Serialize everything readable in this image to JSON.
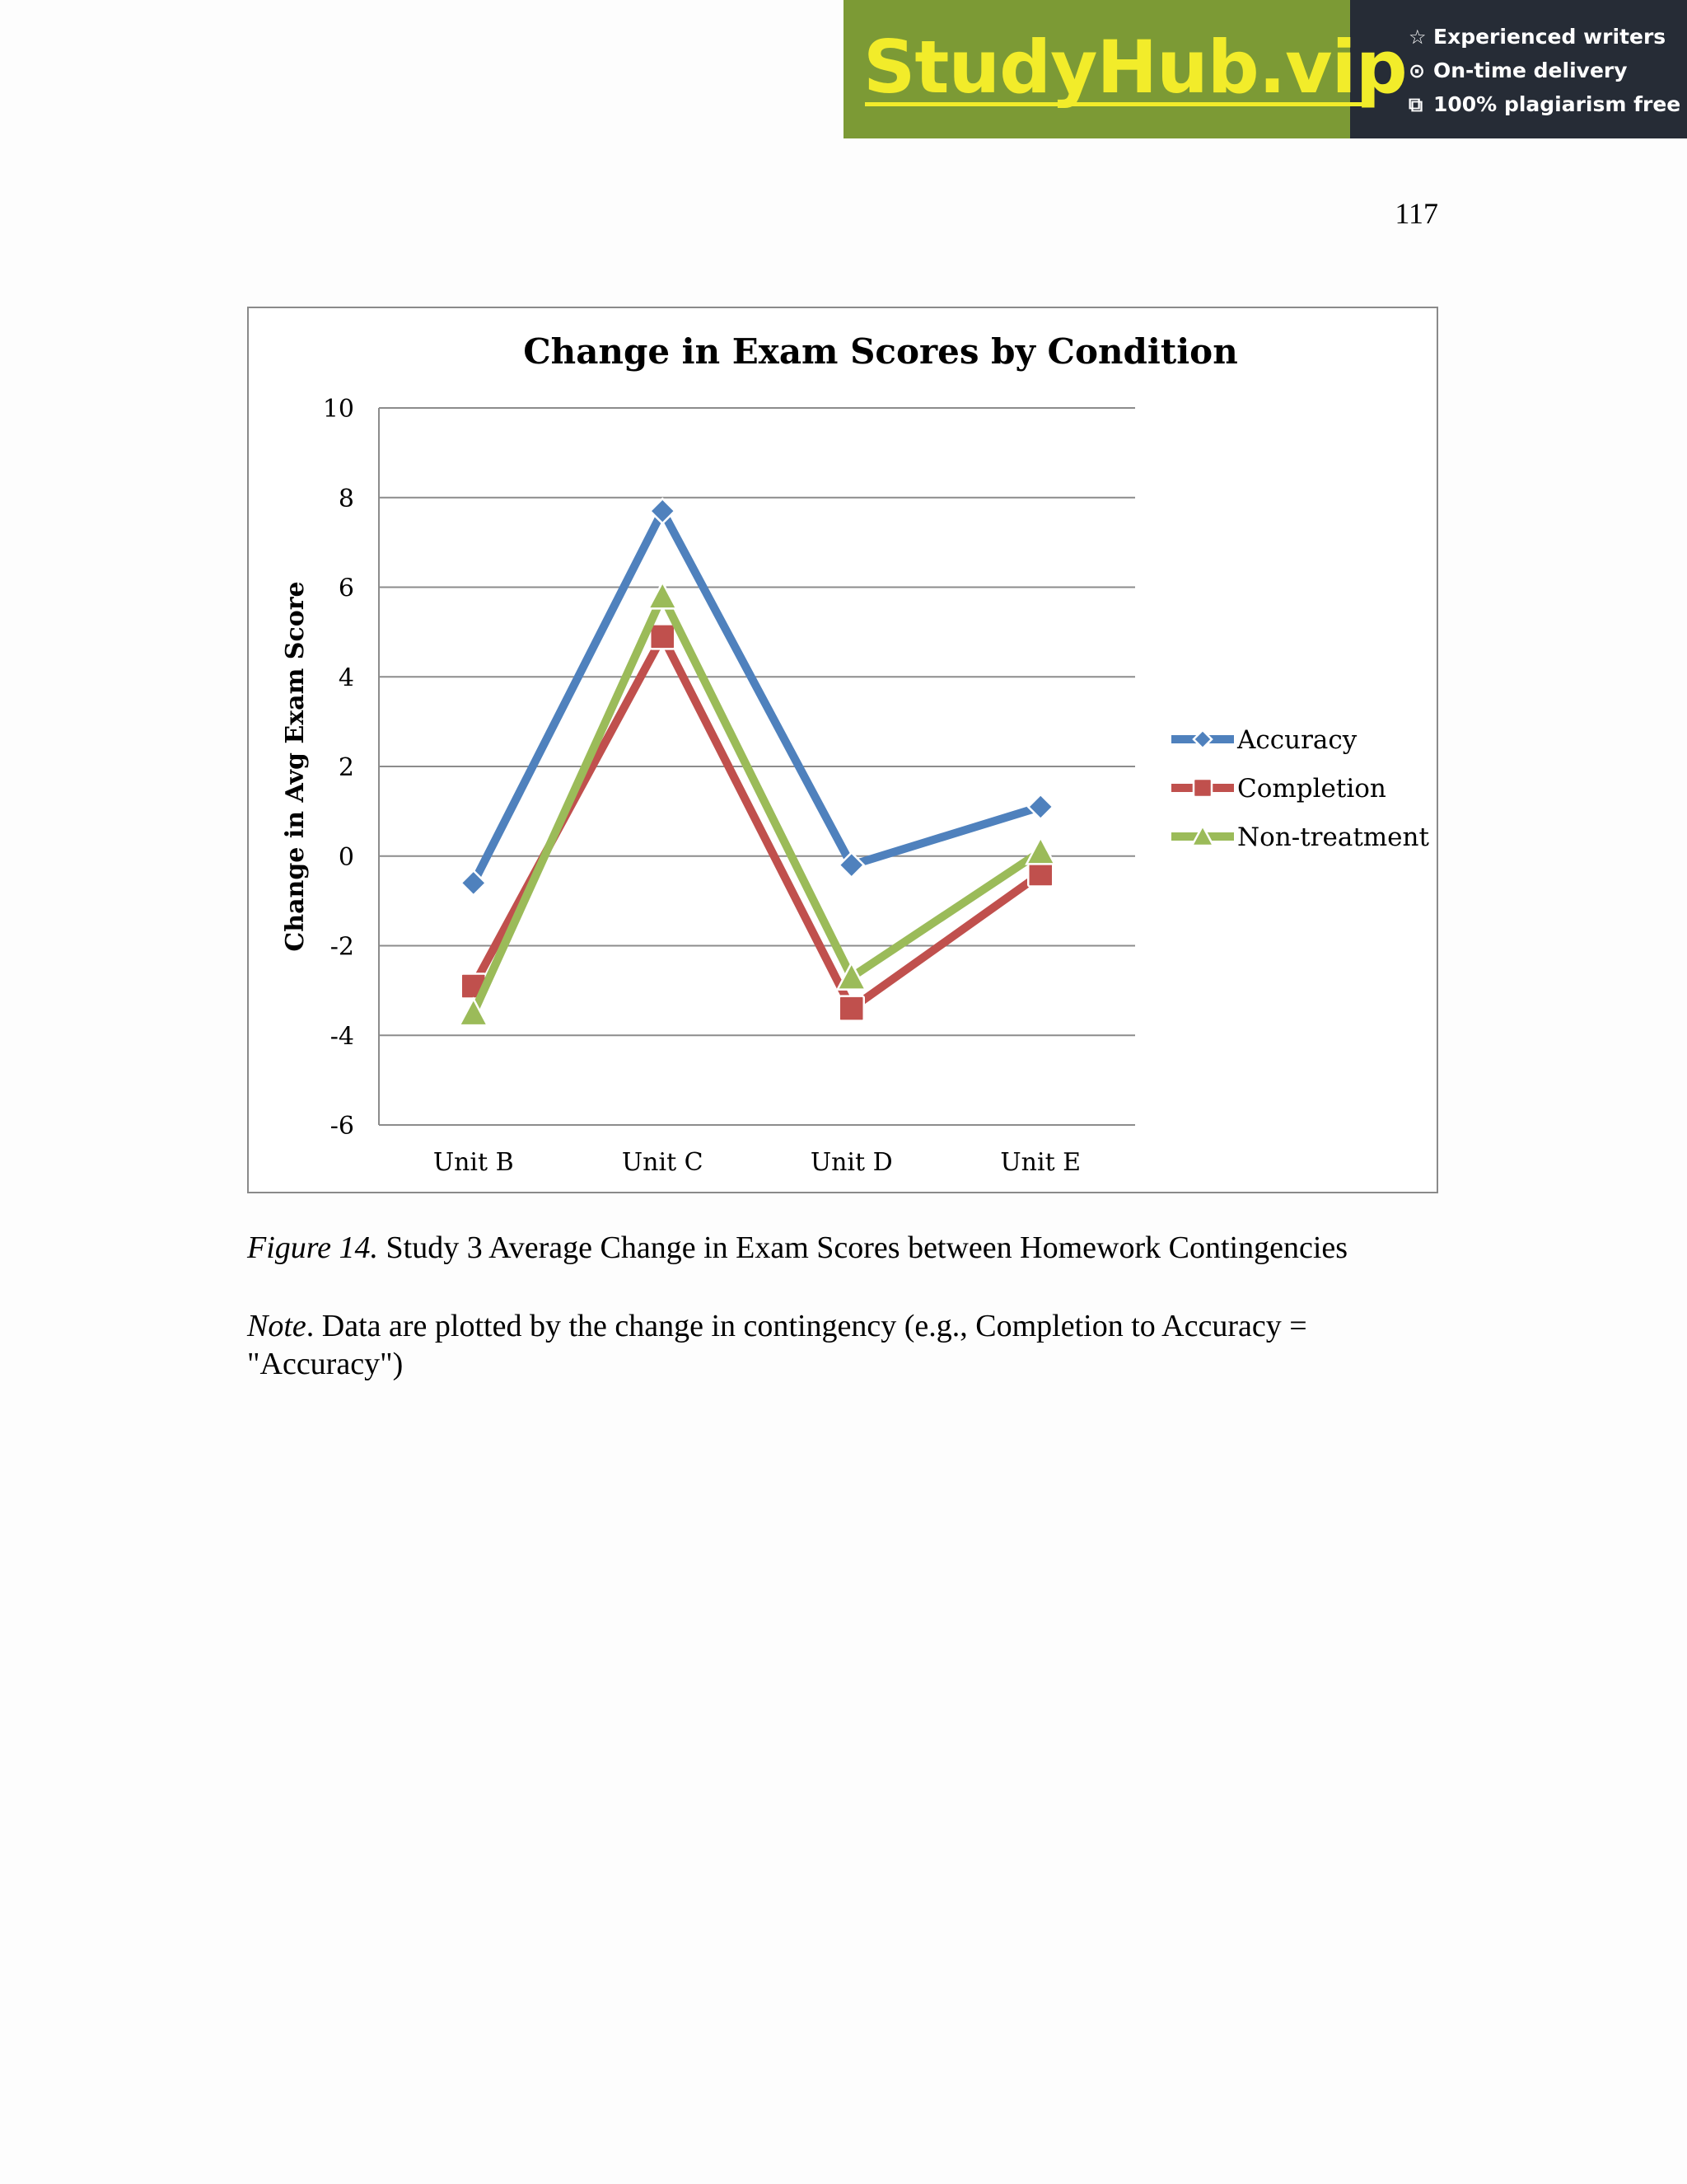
{
  "banner": {
    "brand": "StudyHub.vip",
    "features": [
      {
        "icon": "star-outline-icon",
        "glyph": "☆",
        "text": "Experienced writers"
      },
      {
        "icon": "clock-icon",
        "glyph": "⊙",
        "text": "On-time delivery"
      },
      {
        "icon": "copy-icon",
        "glyph": "⧉",
        "text": "100% plagiarism free"
      }
    ],
    "colors": {
      "green": "#7c9a35",
      "dark": "#262c36",
      "yellow": "#f2ec2a"
    }
  },
  "page_number": "117",
  "chart_data": {
    "type": "line",
    "title": "Change in Exam Scores by Condition",
    "xlabel": "",
    "ylabel": "Change in Avg Exam Score",
    "categories": [
      "Unit B",
      "Unit C",
      "Unit D",
      "Unit E"
    ],
    "ylim": [
      -6,
      10
    ],
    "yticks": [
      -6,
      -4,
      -2,
      0,
      2,
      4,
      6,
      8,
      10
    ],
    "grid": true,
    "legend_position": "right",
    "series": [
      {
        "name": "Accuracy",
        "values": [
          -0.6,
          7.7,
          -0.2,
          1.1
        ],
        "color": "#4f81bd",
        "marker": "diamond"
      },
      {
        "name": "Completion",
        "values": [
          -2.9,
          4.9,
          -3.4,
          -0.4
        ],
        "color": "#c0504d",
        "marker": "square"
      },
      {
        "name": "Non-treatment",
        "values": [
          -3.5,
          5.8,
          -2.7,
          0.1
        ],
        "color": "#9bbb59",
        "marker": "triangle"
      }
    ]
  },
  "figure": {
    "label": "Figure 14.",
    "caption": " Study 3 Average Change in Exam Scores between Homework Contingencies"
  },
  "note": {
    "label": "Note",
    "text": ". Data are plotted by the change in contingency (e.g., Completion to Accuracy = \"Accuracy\")"
  }
}
